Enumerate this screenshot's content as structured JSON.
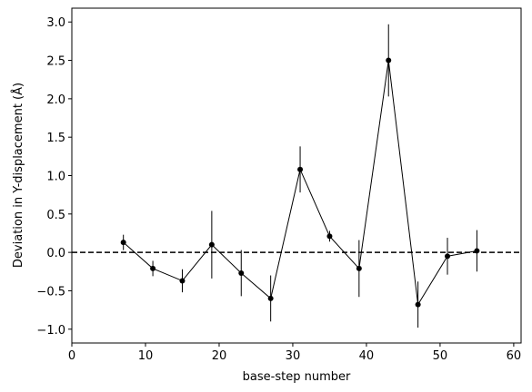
{
  "chart_data": {
    "type": "errorbar-line",
    "x_label": "base-step number",
    "y_label": "Deviation in Y-displacement (Å)",
    "series": [
      {
        "name": "deviation",
        "color": "#000000",
        "x": [
          7,
          11,
          15,
          19,
          23,
          27,
          31,
          35,
          39,
          43,
          47,
          51,
          55
        ],
        "values": [
          0.13,
          -0.21,
          -0.37,
          0.1,
          -0.27,
          -0.6,
          1.08,
          0.21,
          -0.21,
          2.5,
          -0.68,
          -0.05,
          0.02
        ],
        "errors": [
          0.1,
          0.1,
          0.15,
          0.44,
          0.3,
          0.3,
          0.3,
          0.07,
          0.37,
          0.47,
          0.3,
          0.24,
          0.27
        ]
      }
    ],
    "reference_line": 0,
    "xlim": [
      0,
      61
    ],
    "xticks": [
      0,
      10,
      20,
      30,
      40,
      50,
      60
    ],
    "ylim": [
      -1.18,
      3.18
    ],
    "yticks": [
      {
        "value": -1.0,
        "label": "−1.0"
      },
      {
        "value": -0.5,
        "label": "−0.5"
      },
      {
        "value": 0.0,
        "label": "0.0"
      },
      0.5,
      {
        "value": 1.0,
        "label": "1.0"
      },
      1.5,
      {
        "value": 2.0,
        "label": "2.0"
      },
      2.5,
      {
        "value": 3.0,
        "label": "3.0"
      }
    ],
    "grid": false
  }
}
